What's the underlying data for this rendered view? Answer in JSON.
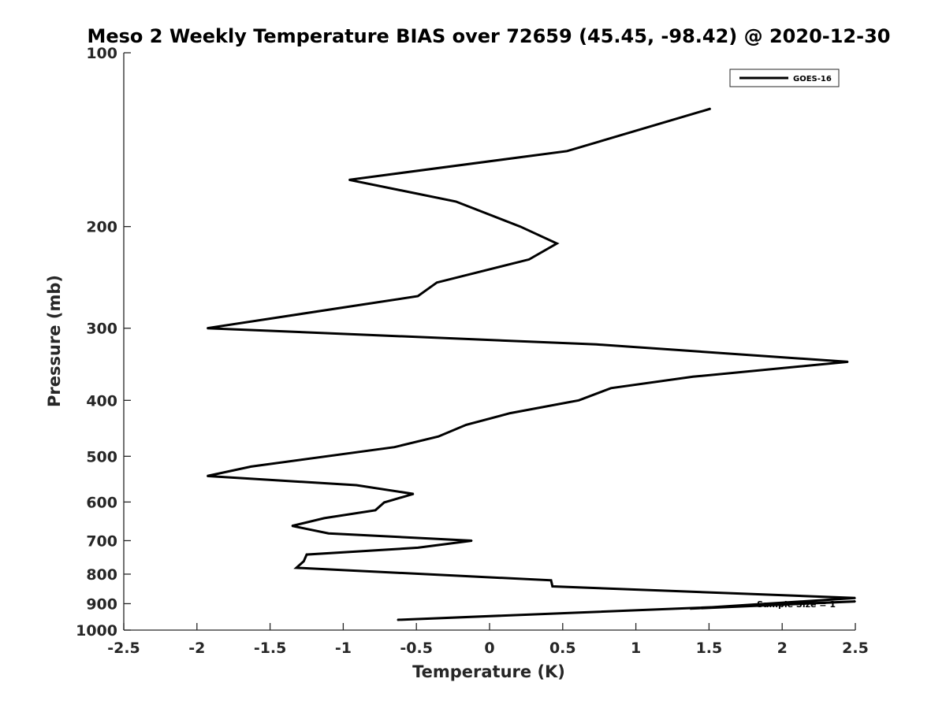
{
  "chart_data": {
    "type": "line",
    "title": "Meso 2 Weekly Temperature BIAS over 72659 (45.45, -98.42) @ 2020-12-30",
    "xlabel": "Temperature (K)",
    "ylabel": "Pressure (mb)",
    "xlim": [
      -2.5,
      2.5
    ],
    "ylim": [
      1000,
      100
    ],
    "y_scale": "log",
    "y_direction": "reversed",
    "x_ticks": [
      -2.5,
      -2,
      -1.5,
      -1,
      -0.5,
      0,
      0.5,
      1,
      1.5,
      2,
      2.5
    ],
    "x_tick_labels": [
      "-2.5",
      "-2",
      "-1.5",
      "-1",
      "-0.5",
      "0",
      "0.5",
      "1",
      "1.5",
      "2",
      "2.5"
    ],
    "y_ticks": [
      100,
      200,
      300,
      400,
      500,
      600,
      700,
      800,
      900,
      1000
    ],
    "y_tick_labels": [
      "100",
      "200",
      "300",
      "400",
      "500",
      "600",
      "700",
      "800",
      "900",
      "1000"
    ],
    "grid": false,
    "legend_position": "top-right",
    "annotation": "Sample Size = 1",
    "series": [
      {
        "name": "GOES-16",
        "color": "#000000",
        "points": [
          {
            "x": 1.51,
            "y": 125
          },
          {
            "x": 0.53,
            "y": 148
          },
          {
            "x": -0.96,
            "y": 166
          },
          {
            "x": -0.23,
            "y": 181
          },
          {
            "x": 0.21,
            "y": 200
          },
          {
            "x": 0.46,
            "y": 214
          },
          {
            "x": 0.27,
            "y": 228
          },
          {
            "x": -0.36,
            "y": 250
          },
          {
            "x": -0.49,
            "y": 264
          },
          {
            "x": -1.93,
            "y": 300
          },
          {
            "x": 0.73,
            "y": 320
          },
          {
            "x": 2.45,
            "y": 343
          },
          {
            "x": 1.39,
            "y": 364
          },
          {
            "x": 0.83,
            "y": 381
          },
          {
            "x": 0.61,
            "y": 400
          },
          {
            "x": 0.14,
            "y": 421
          },
          {
            "x": -0.16,
            "y": 441
          },
          {
            "x": -0.35,
            "y": 462
          },
          {
            "x": -0.65,
            "y": 482
          },
          {
            "x": -1.63,
            "y": 521
          },
          {
            "x": -1.93,
            "y": 541
          },
          {
            "x": -0.91,
            "y": 561
          },
          {
            "x": -0.52,
            "y": 581
          },
          {
            "x": -0.72,
            "y": 601
          },
          {
            "x": -0.78,
            "y": 620
          },
          {
            "x": -1.13,
            "y": 640
          },
          {
            "x": -1.35,
            "y": 660
          },
          {
            "x": -1.1,
            "y": 680
          },
          {
            "x": -0.12,
            "y": 700
          },
          {
            "x": -0.49,
            "y": 720
          },
          {
            "x": -1.25,
            "y": 740
          },
          {
            "x": -1.27,
            "y": 760
          },
          {
            "x": -1.32,
            "y": 780
          },
          {
            "x": 0.42,
            "y": 820
          },
          {
            "x": 0.43,
            "y": 840
          },
          {
            "x": 2.5,
            "y": 880
          },
          {
            "x": 1.37,
            "y": 918
          },
          {
            "x": 2.5,
            "y": 892
          },
          {
            "x": -0.63,
            "y": 960
          }
        ]
      }
    ]
  }
}
